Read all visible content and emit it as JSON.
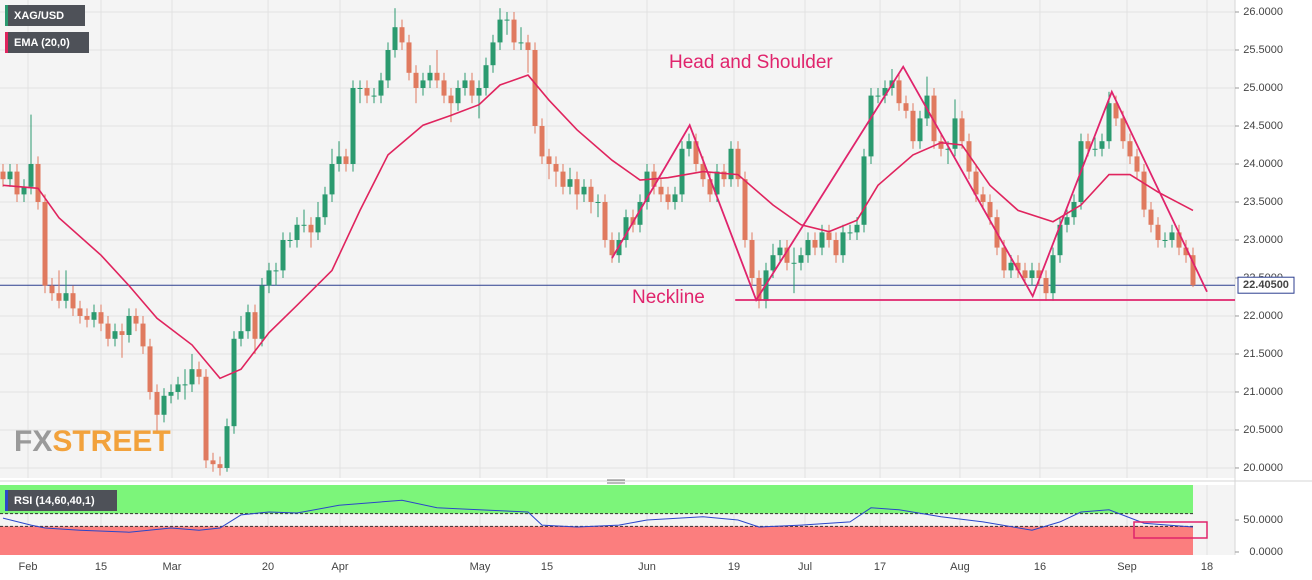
{
  "chart_data": {
    "type": "candlestick",
    "title": "XAG/USD",
    "up_color": "#2b9a6f",
    "down_color": "#e07a5f",
    "xlim": [
      -0.43,
      176
    ],
    "xticks": [
      {
        "value": 3.57,
        "label": "Feb"
      },
      {
        "value": 14,
        "label": "15"
      },
      {
        "value": 24.14,
        "label": "Mar"
      },
      {
        "value": 37.86,
        "label": "20"
      },
      {
        "value": 48.14,
        "label": "Apr"
      },
      {
        "value": 68.14,
        "label": "May"
      },
      {
        "value": 77.71,
        "label": "15"
      },
      {
        "value": 92,
        "label": "Jun"
      },
      {
        "value": 104.43,
        "label": "19"
      },
      {
        "value": 114.57,
        "label": "Jul"
      },
      {
        "value": 125.29,
        "label": "17"
      },
      {
        "value": 136.71,
        "label": "Aug"
      },
      {
        "value": 148.14,
        "label": "16"
      },
      {
        "value": 160.57,
        "label": "Sep"
      },
      {
        "value": 172,
        "label": "18"
      }
    ],
    "ylim": [
      19.868,
      26.158
    ],
    "yticks": [
      {
        "value": 20,
        "label": "20.0000"
      },
      {
        "value": 20.5,
        "label": "20.5000"
      },
      {
        "value": 21,
        "label": "21.0000"
      },
      {
        "value": 21.5,
        "label": "21.5000"
      },
      {
        "value": 22,
        "label": "22.0000"
      },
      {
        "value": 22.5,
        "label": "22.5000"
      },
      {
        "value": 23,
        "label": "23.0000"
      },
      {
        "value": 23.5,
        "label": "23.5000"
      },
      {
        "value": 24,
        "label": "24.0000"
      },
      {
        "value": 24.5,
        "label": "24.5000"
      },
      {
        "value": 25,
        "label": "25.0000"
      },
      {
        "value": 25.5,
        "label": "25.5000"
      },
      {
        "value": 26,
        "label": "26.0000"
      }
    ],
    "grid": true,
    "ohlc": [
      [
        23.9,
        24.0,
        23.7,
        23.8
      ],
      [
        23.8,
        24.0,
        23.7,
        23.9
      ],
      [
        23.9,
        24.0,
        23.5,
        23.6
      ],
      [
        23.6,
        23.8,
        23.5,
        23.7
      ],
      [
        23.7,
        24.65,
        23.6,
        24.0
      ],
      [
        24.0,
        24.1,
        23.4,
        23.5
      ],
      [
        23.5,
        23.6,
        22.3,
        22.4
      ],
      [
        22.4,
        22.5,
        22.2,
        22.3
      ],
      [
        22.3,
        22.6,
        22.1,
        22.2
      ],
      [
        22.2,
        22.6,
        22.1,
        22.3
      ],
      [
        22.3,
        22.4,
        22.0,
        22.1
      ],
      [
        22.1,
        22.2,
        21.9,
        22.0
      ],
      [
        22.0,
        22.1,
        21.85,
        21.95
      ],
      [
        21.95,
        22.15,
        21.85,
        22.05
      ],
      [
        22.05,
        22.15,
        21.8,
        21.9
      ],
      [
        21.9,
        22.0,
        21.6,
        21.7
      ],
      [
        21.7,
        21.9,
        21.6,
        21.8
      ],
      [
        21.8,
        21.9,
        21.45,
        21.75
      ],
      [
        21.75,
        22.1,
        21.65,
        22.0
      ],
      [
        22.0,
        22.1,
        21.8,
        21.9
      ],
      [
        21.9,
        22.0,
        21.5,
        21.6
      ],
      [
        21.6,
        21.7,
        20.9,
        21.0
      ],
      [
        21.0,
        21.1,
        20.45,
        20.7
      ],
      [
        20.7,
        21.05,
        20.6,
        20.95
      ],
      [
        20.95,
        21.1,
        20.85,
        21.0
      ],
      [
        21.0,
        21.2,
        20.9,
        21.1
      ],
      [
        21.1,
        21.3,
        20.9,
        21.1
      ],
      [
        21.1,
        21.5,
        21.0,
        21.3
      ],
      [
        21.3,
        21.4,
        21.1,
        21.2
      ],
      [
        21.2,
        21.3,
        20.0,
        20.1
      ],
      [
        20.1,
        20.2,
        19.95,
        20.05
      ],
      [
        20.05,
        20.15,
        19.9,
        20.0
      ],
      [
        20.0,
        20.65,
        19.95,
        20.55
      ],
      [
        20.55,
        21.8,
        20.45,
        21.7
      ],
      [
        21.7,
        22.0,
        21.6,
        21.8
      ],
      [
        21.8,
        22.15,
        21.7,
        22.05
      ],
      [
        22.05,
        22.15,
        21.5,
        21.7
      ],
      [
        21.7,
        22.5,
        21.6,
        22.4
      ],
      [
        22.4,
        22.7,
        22.3,
        22.6
      ],
      [
        22.6,
        22.7,
        22.4,
        22.6
      ],
      [
        22.6,
        23.1,
        22.5,
        23.0
      ],
      [
        23.0,
        23.1,
        22.9,
        23.0
      ],
      [
        23.0,
        23.3,
        22.9,
        23.2
      ],
      [
        23.2,
        23.4,
        23.1,
        23.2
      ],
      [
        23.2,
        23.3,
        22.9,
        23.1
      ],
      [
        23.1,
        23.5,
        23.0,
        23.3
      ],
      [
        23.3,
        23.7,
        23.2,
        23.6
      ],
      [
        23.6,
        24.2,
        23.5,
        24.0
      ],
      [
        24.0,
        24.3,
        23.9,
        24.1
      ],
      [
        24.1,
        24.2,
        23.9,
        24.0
      ],
      [
        24.0,
        25.1,
        23.9,
        25.0
      ],
      [
        25.0,
        25.1,
        24.8,
        25.0
      ],
      [
        25.0,
        25.1,
        24.8,
        24.9
      ],
      [
        24.9,
        25.0,
        24.8,
        24.9
      ],
      [
        24.9,
        25.2,
        24.8,
        25.1
      ],
      [
        25.1,
        25.6,
        25.0,
        25.5
      ],
      [
        25.5,
        26.05,
        25.4,
        25.8
      ],
      [
        25.8,
        25.9,
        25.5,
        25.6
      ],
      [
        25.6,
        25.7,
        25.1,
        25.2
      ],
      [
        25.2,
        25.3,
        24.8,
        25.0
      ],
      [
        25.0,
        25.2,
        24.9,
        25.1
      ],
      [
        25.1,
        25.3,
        25.0,
        25.2
      ],
      [
        25.2,
        25.5,
        25.0,
        25.1
      ],
      [
        25.1,
        25.2,
        24.8,
        24.9
      ],
      [
        24.9,
        25.0,
        24.55,
        24.8
      ],
      [
        24.8,
        25.1,
        24.7,
        25.0
      ],
      [
        25.0,
        25.2,
        24.9,
        25.1
      ],
      [
        25.1,
        25.2,
        24.8,
        24.9
      ],
      [
        24.9,
        25.1,
        24.6,
        25.0
      ],
      [
        25.0,
        25.4,
        24.9,
        25.3
      ],
      [
        25.3,
        25.7,
        25.2,
        25.6
      ],
      [
        25.6,
        26.05,
        25.5,
        25.9
      ],
      [
        25.9,
        26.0,
        25.7,
        25.9
      ],
      [
        25.9,
        26.0,
        25.5,
        25.6
      ],
      [
        25.6,
        25.8,
        25.5,
        25.6
      ],
      [
        25.6,
        25.7,
        25.2,
        25.5
      ],
      [
        25.5,
        25.6,
        24.4,
        24.5
      ],
      [
        24.5,
        24.6,
        24.0,
        24.1
      ],
      [
        24.1,
        24.2,
        23.8,
        24.0
      ],
      [
        24.0,
        24.1,
        23.7,
        23.9
      ],
      [
        23.9,
        24.0,
        23.6,
        23.7
      ],
      [
        23.7,
        23.95,
        23.6,
        23.8
      ],
      [
        23.8,
        23.9,
        23.4,
        23.6
      ],
      [
        23.6,
        23.8,
        23.5,
        23.7
      ],
      [
        23.7,
        23.8,
        23.35,
        23.5
      ],
      [
        23.5,
        23.6,
        23.3,
        23.5
      ],
      [
        23.5,
        23.6,
        22.9,
        23.0
      ],
      [
        23.0,
        23.1,
        22.7,
        22.8
      ],
      [
        22.8,
        23.1,
        22.7,
        23.0
      ],
      [
        23.0,
        23.4,
        22.9,
        23.3
      ],
      [
        23.3,
        23.4,
        23.1,
        23.2
      ],
      [
        23.2,
        23.6,
        23.1,
        23.5
      ],
      [
        23.5,
        24.0,
        23.4,
        23.9
      ],
      [
        23.9,
        24.0,
        23.6,
        23.7
      ],
      [
        23.7,
        23.8,
        23.5,
        23.6
      ],
      [
        23.6,
        23.7,
        23.4,
        23.5
      ],
      [
        23.5,
        23.7,
        23.4,
        23.6
      ],
      [
        23.6,
        24.3,
        23.5,
        24.2
      ],
      [
        24.2,
        24.4,
        24.1,
        24.3
      ],
      [
        24.3,
        24.4,
        23.9,
        24.0
      ],
      [
        24.0,
        24.1,
        23.7,
        23.8
      ],
      [
        23.8,
        23.9,
        23.5,
        23.6
      ],
      [
        23.6,
        24.0,
        23.5,
        23.9
      ],
      [
        23.9,
        24.0,
        23.7,
        23.8
      ],
      [
        23.8,
        24.3,
        23.7,
        24.2
      ],
      [
        24.2,
        24.3,
        23.7,
        23.8
      ],
      [
        23.8,
        23.9,
        22.9,
        23.0
      ],
      [
        23.0,
        23.1,
        22.4,
        22.5
      ],
      [
        22.5,
        22.6,
        22.1,
        22.2
      ],
      [
        22.2,
        22.7,
        22.1,
        22.6
      ],
      [
        22.6,
        22.95,
        22.5,
        22.8
      ],
      [
        22.8,
        23.0,
        22.7,
        22.9
      ],
      [
        22.9,
        23.0,
        22.6,
        22.7
      ],
      [
        22.7,
        22.9,
        22.3,
        22.7
      ],
      [
        22.7,
        22.9,
        22.6,
        22.8
      ],
      [
        22.8,
        23.1,
        22.7,
        23.0
      ],
      [
        23.0,
        23.1,
        22.8,
        22.9
      ],
      [
        22.9,
        23.2,
        22.8,
        23.1
      ],
      [
        23.1,
        23.2,
        22.9,
        23.0
      ],
      [
        23.0,
        23.1,
        22.7,
        22.8
      ],
      [
        22.8,
        23.2,
        22.7,
        23.1
      ],
      [
        23.1,
        23.2,
        23.0,
        23.1
      ],
      [
        23.1,
        23.3,
        23.0,
        23.2
      ],
      [
        23.2,
        24.2,
        23.1,
        24.1
      ],
      [
        24.1,
        25.0,
        24.0,
        24.9
      ],
      [
        24.9,
        25.0,
        24.8,
        24.9
      ],
      [
        24.9,
        25.1,
        24.8,
        25.0
      ],
      [
        25.0,
        25.25,
        24.9,
        25.1
      ],
      [
        25.1,
        25.2,
        24.7,
        24.8
      ],
      [
        24.8,
        24.9,
        24.6,
        24.7
      ],
      [
        24.7,
        24.8,
        24.2,
        24.3
      ],
      [
        24.3,
        24.7,
        24.2,
        24.6
      ],
      [
        24.6,
        25.15,
        24.5,
        24.9
      ],
      [
        24.9,
        25.0,
        24.2,
        24.3
      ],
      [
        24.3,
        24.4,
        24.1,
        24.2
      ],
      [
        24.2,
        24.3,
        24.0,
        24.2
      ],
      [
        24.2,
        24.85,
        24.1,
        24.6
      ],
      [
        24.6,
        24.7,
        24.2,
        24.3
      ],
      [
        24.3,
        24.4,
        23.8,
        23.9
      ],
      [
        23.9,
        24.0,
        23.5,
        23.6
      ],
      [
        23.6,
        23.7,
        23.4,
        23.5
      ],
      [
        23.5,
        23.6,
        23.2,
        23.3
      ],
      [
        23.3,
        23.4,
        22.8,
        22.9
      ],
      [
        22.9,
        23.0,
        22.5,
        22.6
      ],
      [
        22.6,
        22.8,
        22.5,
        22.7
      ],
      [
        22.7,
        22.8,
        22.5,
        22.6
      ],
      [
        22.6,
        22.7,
        22.4,
        22.5
      ],
      [
        22.5,
        22.7,
        22.4,
        22.6
      ],
      [
        22.6,
        22.7,
        22.4,
        22.5
      ],
      [
        22.5,
        22.6,
        22.2,
        22.3
      ],
      [
        22.3,
        22.9,
        22.2,
        22.8
      ],
      [
        22.8,
        23.3,
        22.7,
        23.2
      ],
      [
        23.2,
        23.4,
        23.1,
        23.3
      ],
      [
        23.3,
        23.6,
        23.2,
        23.5
      ],
      [
        23.5,
        24.4,
        23.4,
        24.3
      ],
      [
        24.3,
        24.4,
        24.1,
        24.2
      ],
      [
        24.2,
        24.35,
        24.1,
        24.2
      ],
      [
        24.2,
        24.4,
        24.1,
        24.3
      ],
      [
        24.3,
        24.95,
        24.2,
        24.8
      ],
      [
        24.8,
        24.9,
        24.5,
        24.6
      ],
      [
        24.6,
        24.7,
        24.2,
        24.3
      ],
      [
        24.3,
        24.4,
        24.0,
        24.1
      ],
      [
        24.1,
        24.2,
        23.8,
        23.9
      ],
      [
        23.9,
        24.0,
        23.3,
        23.4
      ],
      [
        23.4,
        23.5,
        23.1,
        23.2
      ],
      [
        23.2,
        23.3,
        22.9,
        23.0
      ],
      [
        23.0,
        23.1,
        22.9,
        23.0
      ],
      [
        23.0,
        23.2,
        22.9,
        23.1
      ],
      [
        23.1,
        23.2,
        22.8,
        22.9
      ],
      [
        22.9,
        23.0,
        22.7,
        22.8
      ],
      [
        22.8,
        22.9,
        22.38,
        22.405
      ]
    ],
    "ema": {
      "name": "EMA (20,0)",
      "color": "#e0245e",
      "x": [
        0,
        5,
        8,
        14,
        18,
        22,
        27,
        31,
        34,
        38,
        42,
        47,
        51,
        55,
        60,
        64,
        68,
        71,
        75,
        78,
        82,
        87,
        91,
        95,
        100,
        105,
        110,
        114,
        118,
        122,
        125,
        130,
        134,
        137,
        141,
        145,
        150,
        154,
        158,
        161,
        165,
        170
      ],
      "values": [
        23.72,
        23.68,
        23.29,
        22.8,
        22.4,
        21.97,
        21.62,
        21.18,
        21.3,
        21.78,
        22.14,
        22.6,
        23.39,
        24.12,
        24.51,
        24.64,
        24.78,
        25.04,
        25.17,
        24.84,
        24.45,
        24.05,
        23.79,
        23.82,
        23.9,
        23.86,
        23.46,
        23.2,
        23.11,
        23.26,
        23.72,
        24.12,
        24.28,
        24.25,
        23.72,
        23.39,
        23.24,
        23.46,
        23.86,
        23.86,
        23.63,
        23.39
      ]
    },
    "pattern": {
      "label": "Head and Shoulder",
      "color": "#e0246c",
      "x": [
        87,
        98.1,
        107.6,
        128.6,
        147.1,
        158.4,
        172
      ],
      "values": [
        22.76,
        24.51,
        22.21,
        25.28,
        22.26,
        24.95,
        22.32
      ]
    },
    "neckline": {
      "label": "Neckline",
      "x": [
        104.6,
        176
      ],
      "values": [
        22.21,
        22.21
      ]
    },
    "last_price": {
      "value": 22.405,
      "label": "22.40500",
      "color": "#2c3e8f"
    },
    "watermark": [
      "FX",
      "STREET"
    ],
    "rsi": {
      "name": "RSI (14,60,40,1)",
      "upper": 60,
      "lower": 40,
      "color": "#2b46c8",
      "ylim": [
        -4.7,
        104.7
      ],
      "yticks": [
        {
          "value": 50,
          "label": "50.0000"
        },
        {
          "value": 0,
          "label": "0.0000"
        }
      ],
      "x": [
        0,
        4,
        6,
        11,
        18,
        24,
        28,
        31,
        34,
        38,
        42,
        48,
        57,
        62,
        68,
        75,
        77,
        82,
        88,
        92,
        100,
        105,
        108,
        114,
        121,
        124,
        128,
        134,
        140,
        147,
        151,
        154,
        158,
        163,
        170
      ],
      "values": [
        53,
        42,
        37.5,
        34,
        31,
        37.5,
        34,
        37.5,
        58,
        62.5,
        61,
        73,
        81,
        69,
        66,
        62.5,
        42,
        39,
        42,
        50,
        55,
        50,
        39,
        42,
        47,
        69,
        66,
        55,
        47,
        34,
        47,
        62.5,
        66,
        45,
        39
      ]
    }
  }
}
